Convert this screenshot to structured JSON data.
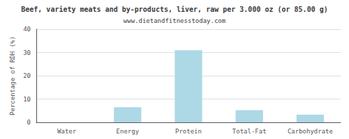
{
  "chart_data": {
    "type": "bar",
    "title": "Beef, variety meats and by-products, liver, raw per 3.000 oz (or 85.00 g)",
    "subtitle": "www.dietandfitnesstoday.com",
    "categories": [
      "Water",
      "Energy",
      "Protein",
      "Total-Fat",
      "Carbohydrate"
    ],
    "values": [
      0,
      6.5,
      31,
      5.2,
      3.3
    ],
    "color": "#add8e6",
    "ylabel": "Percentage of RDH (%)",
    "ylim": [
      0,
      40
    ],
    "yticks": [
      0,
      10,
      20,
      30,
      40
    ],
    "grid": true
  }
}
